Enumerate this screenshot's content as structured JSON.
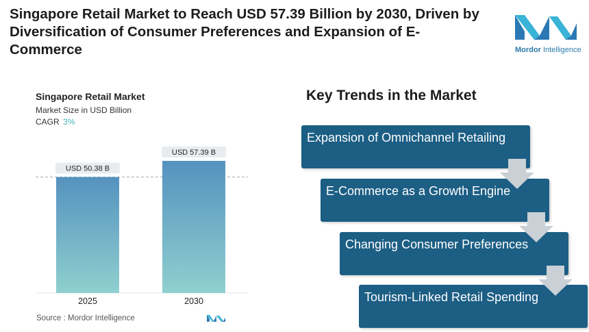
{
  "headline": "Singapore Retail Market to Reach USD 57.39 Billion by 2030, Driven by Diversification of Consumer Preferences and Expansion of E-Commerce",
  "logo": {
    "brand_bold": "Mordor",
    "brand_rest": " Intelligence",
    "icon": "mordor-intelligence-logo"
  },
  "chart": {
    "title": "Singapore Retail Market",
    "subtitle": "Market Size in USD Billion",
    "cagr_label": "CAGR",
    "cagr_value": "3%"
  },
  "chart_data": {
    "type": "bar",
    "categories": [
      "2025",
      "2030"
    ],
    "values": [
      50.38,
      57.39
    ],
    "data_labels": [
      "USD 50.38 B",
      "USD 57.39 B"
    ],
    "title": "Singapore Retail Market",
    "ylabel": "Market Size in USD Billion",
    "grid": false,
    "reference_line": 50.38,
    "colors": {
      "bar_top": "#5592bf",
      "bar_bottom": "#8fd0cf"
    }
  },
  "source": {
    "label": "Source :",
    "name": "Mordor Intelligence"
  },
  "trends": {
    "title": "Key Trends in the Market",
    "items": [
      "Expansion of Omnichannel Retailing",
      "E-Commerce as a Growth Engine",
      "Changing Consumer Preferences",
      "Tourism-Linked Retail Spending"
    ],
    "box_color": "#1c5e84",
    "arrow_color": "#c9d0d6"
  }
}
